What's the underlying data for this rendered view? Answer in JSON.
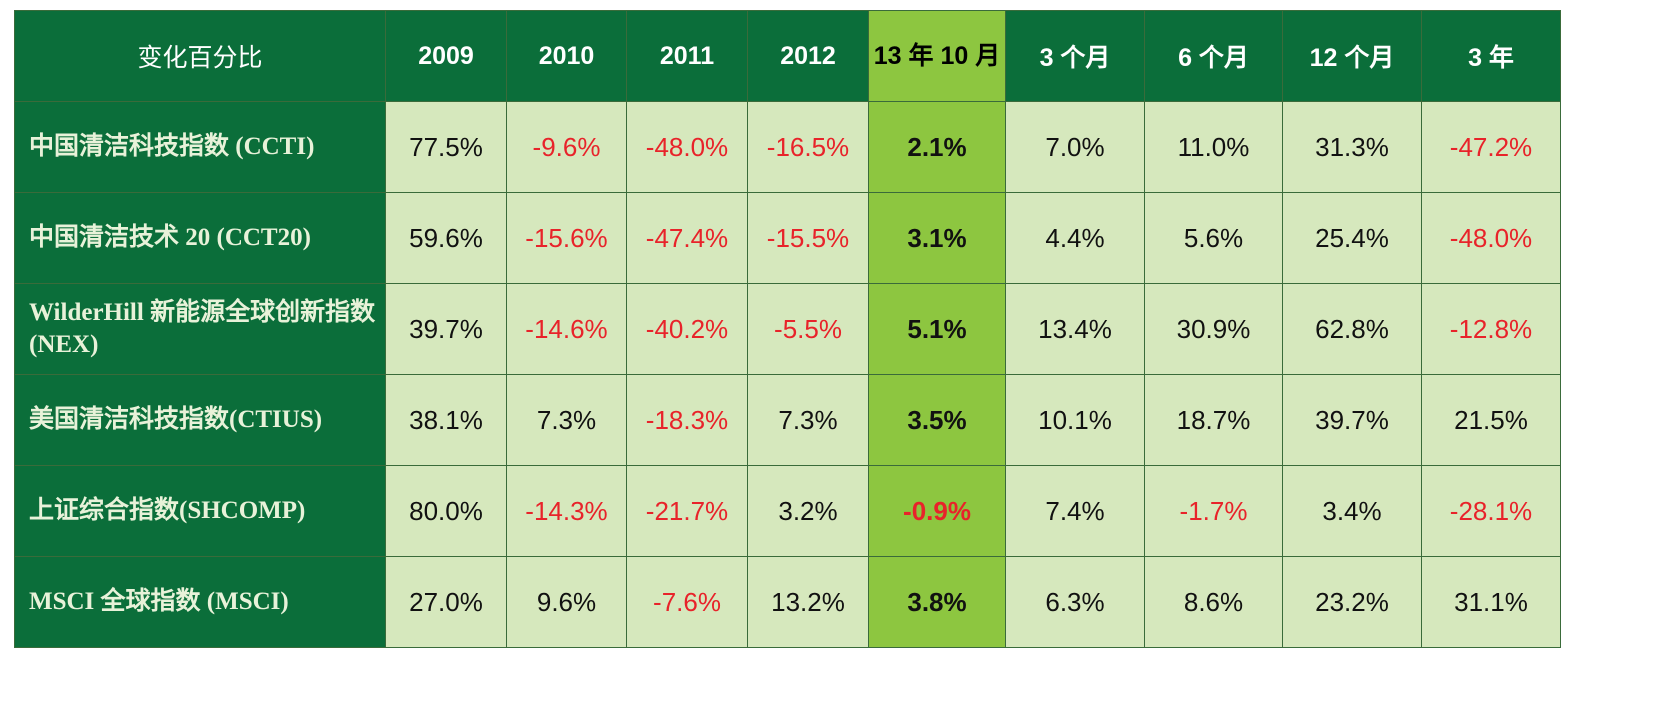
{
  "table": {
    "headers": [
      "变化百分比",
      "2009",
      "2010",
      "2011",
      "2012",
      "13 年 10 月",
      "3 个月",
      "6 个月",
      "12 个月",
      "3 年"
    ],
    "rows": [
      {
        "name": "中国清洁科技指数 (CCTI)",
        "values": [
          "77.5%",
          "-9.6%",
          "-48.0%",
          "-16.5%",
          "2.1%",
          "7.0%",
          "11.0%",
          "31.3%",
          "-47.2%"
        ]
      },
      {
        "name": "中国清洁技术 20 (CCT20)",
        "values": [
          "59.6%",
          "-15.6%",
          "-47.4%",
          "-15.5%",
          "3.1%",
          "4.4%",
          "5.6%",
          "25.4%",
          "-48.0%"
        ]
      },
      {
        "name": "WilderHill 新能源全球创新指数(NEX)",
        "values": [
          "39.7%",
          "-14.6%",
          "-40.2%",
          "-5.5%",
          "5.1%",
          "13.4%",
          "30.9%",
          "62.8%",
          "-12.8%"
        ]
      },
      {
        "name": "美国清洁科技指数(CTIUS)",
        "values": [
          "38.1%",
          "7.3%",
          "-18.3%",
          "7.3%",
          "3.5%",
          "10.1%",
          "18.7%",
          "39.7%",
          "21.5%"
        ]
      },
      {
        "name": "上证综合指数(SHCOMP)",
        "values": [
          "80.0%",
          "-14.3%",
          "-21.7%",
          "3.2%",
          "-0.9%",
          "7.4%",
          "-1.7%",
          "3.4%",
          "-28.1%"
        ]
      },
      {
        "name": "MSCI 全球指数 (MSCI)",
        "values": [
          "27.0%",
          "9.6%",
          "-7.6%",
          "13.2%",
          "3.8%",
          "6.3%",
          "8.6%",
          "23.2%",
          "31.1%"
        ]
      }
    ]
  },
  "colors": {
    "header_bg": "#0b6e3a",
    "cell_bg": "#d6e8bd",
    "highlight_bg": "#8dc640",
    "negative_text": "#e8232a"
  }
}
